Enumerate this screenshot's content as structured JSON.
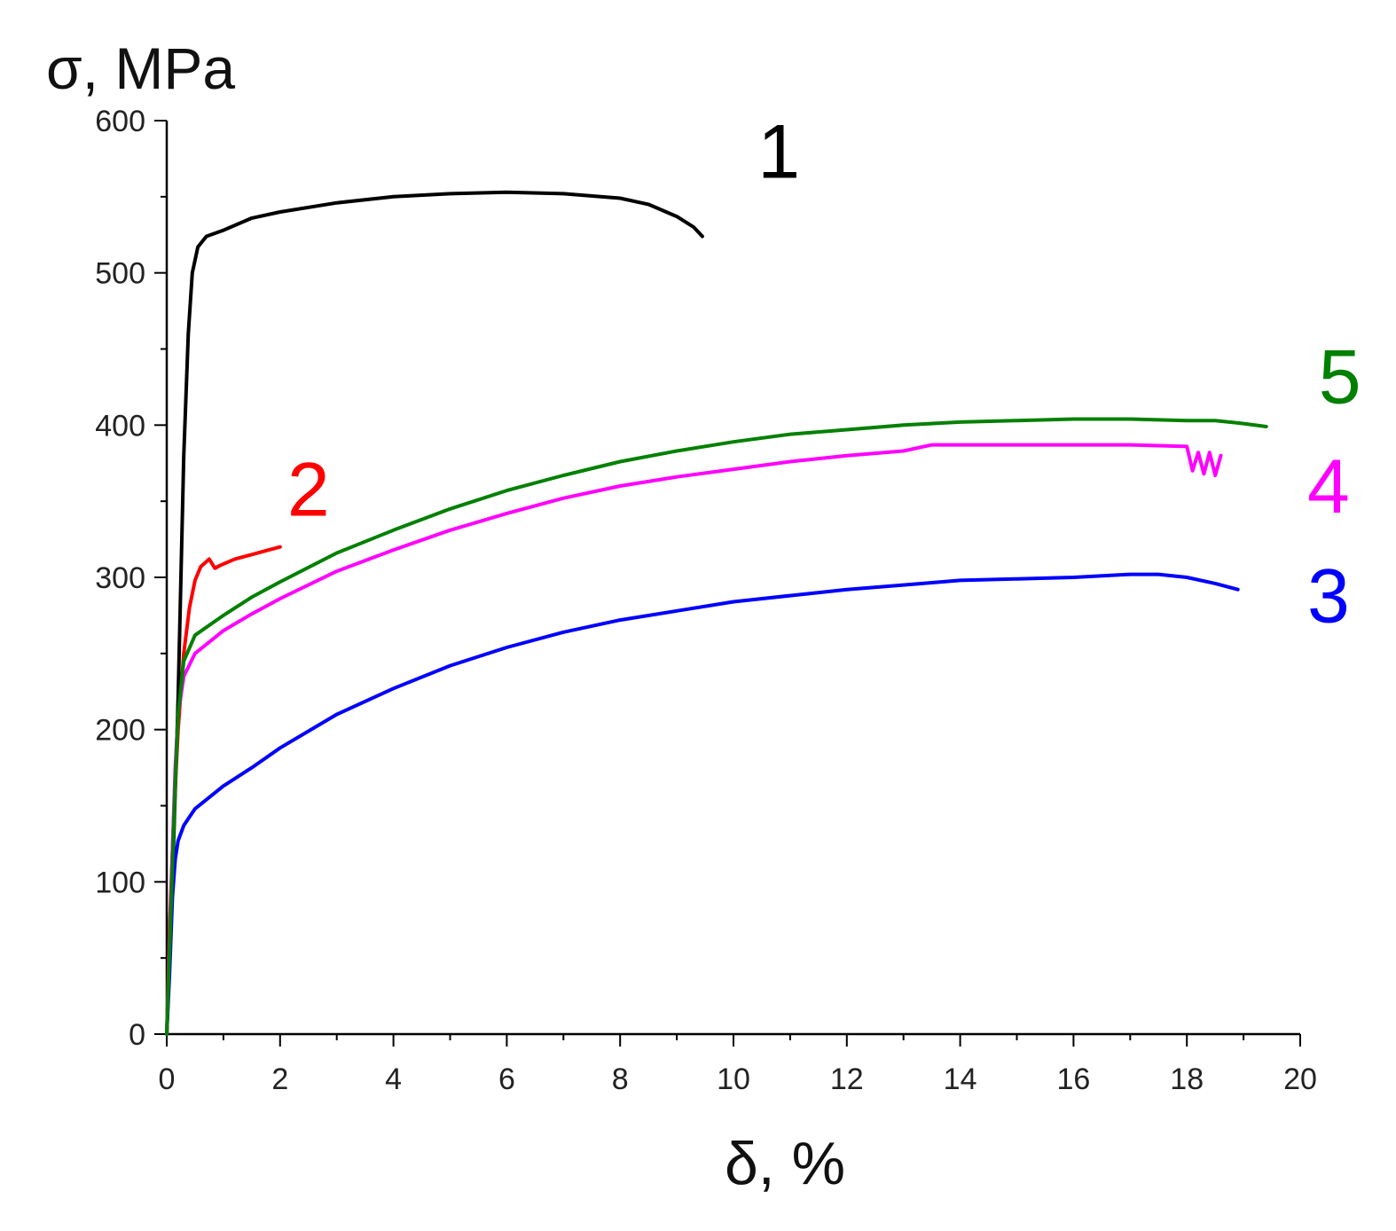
{
  "chart_data": {
    "type": "line",
    "title": "",
    "xlabel": "δ, %",
    "ylabel": "σ, MPa",
    "xlim": [
      0,
      20
    ],
    "ylim": [
      0,
      600
    ],
    "xticks": [
      0,
      2,
      4,
      6,
      8,
      10,
      12,
      14,
      16,
      18,
      20
    ],
    "yticks": [
      0,
      100,
      200,
      300,
      400,
      500,
      600
    ],
    "grid": false,
    "legend": "none",
    "series": [
      {
        "name": "1",
        "color": "#000000",
        "label_at": [
          10.8,
          580
        ],
        "points": [
          [
            0,
            0
          ],
          [
            0.1,
            100
          ],
          [
            0.2,
            220
          ],
          [
            0.3,
            380
          ],
          [
            0.38,
            460
          ],
          [
            0.45,
            500
          ],
          [
            0.55,
            517
          ],
          [
            0.7,
            524
          ],
          [
            1,
            528
          ],
          [
            1.5,
            536
          ],
          [
            2,
            540
          ],
          [
            3,
            546
          ],
          [
            4,
            550
          ],
          [
            5,
            552
          ],
          [
            6,
            553
          ],
          [
            7,
            552
          ],
          [
            8,
            549
          ],
          [
            8.5,
            545
          ],
          [
            9,
            537
          ],
          [
            9.3,
            530
          ],
          [
            9.45,
            524
          ]
        ]
      },
      {
        "name": "2",
        "color": "#ff0000",
        "label_at": [
          2.5,
          358
        ],
        "points": [
          [
            0,
            0
          ],
          [
            0.05,
            70
          ],
          [
            0.12,
            140
          ],
          [
            0.2,
            200
          ],
          [
            0.3,
            250
          ],
          [
            0.4,
            280
          ],
          [
            0.5,
            298
          ],
          [
            0.6,
            307
          ],
          [
            0.75,
            312
          ],
          [
            0.85,
            306
          ],
          [
            0.95,
            308
          ],
          [
            1.2,
            312
          ],
          [
            1.5,
            315
          ],
          [
            1.8,
            318
          ],
          [
            2,
            320
          ]
        ]
      },
      {
        "name": "3",
        "color": "#0000ff",
        "label_at": [
          20.5,
          288
        ],
        "points": [
          [
            0,
            0
          ],
          [
            0.05,
            40
          ],
          [
            0.1,
            90
          ],
          [
            0.15,
            115
          ],
          [
            0.2,
            127
          ],
          [
            0.3,
            137
          ],
          [
            0.5,
            148
          ],
          [
            1,
            163
          ],
          [
            1.5,
            175
          ],
          [
            2,
            188
          ],
          [
            3,
            210
          ],
          [
            4,
            227
          ],
          [
            5,
            242
          ],
          [
            6,
            254
          ],
          [
            7,
            264
          ],
          [
            8,
            272
          ],
          [
            9,
            278
          ],
          [
            10,
            284
          ],
          [
            11,
            288
          ],
          [
            12,
            292
          ],
          [
            13,
            295
          ],
          [
            14,
            298
          ],
          [
            15,
            299
          ],
          [
            16,
            300
          ],
          [
            17,
            302
          ],
          [
            17.5,
            302
          ],
          [
            18,
            300
          ],
          [
            18.5,
            296
          ],
          [
            18.9,
            292
          ]
        ]
      },
      {
        "name": "4",
        "color": "#ff00ff",
        "label_at": [
          20.5,
          360
        ],
        "points": [
          [
            0,
            0
          ],
          [
            0.05,
            60
          ],
          [
            0.1,
            120
          ],
          [
            0.15,
            175
          ],
          [
            0.2,
            210
          ],
          [
            0.3,
            235
          ],
          [
            0.5,
            250
          ],
          [
            1,
            265
          ],
          [
            1.5,
            276
          ],
          [
            2,
            286
          ],
          [
            3,
            304
          ],
          [
            4,
            318
          ],
          [
            5,
            331
          ],
          [
            6,
            342
          ],
          [
            7,
            352
          ],
          [
            8,
            360
          ],
          [
            9,
            366
          ],
          [
            10,
            371
          ],
          [
            11,
            376
          ],
          [
            12,
            380
          ],
          [
            13,
            383
          ],
          [
            13.5,
            387
          ],
          [
            14,
            387
          ],
          [
            15,
            387
          ],
          [
            16,
            387
          ],
          [
            17,
            387
          ],
          [
            18,
            386
          ],
          [
            18.1,
            370
          ],
          [
            18.2,
            382
          ],
          [
            18.3,
            368
          ],
          [
            18.4,
            382
          ],
          [
            18.5,
            367
          ],
          [
            18.6,
            380
          ]
        ]
      },
      {
        "name": "5",
        "color": "#008000",
        "label_at": [
          20.7,
          432
        ],
        "points": [
          [
            0,
            0
          ],
          [
            0.05,
            55
          ],
          [
            0.1,
            110
          ],
          [
            0.15,
            165
          ],
          [
            0.2,
            210
          ],
          [
            0.3,
            245
          ],
          [
            0.5,
            262
          ],
          [
            1,
            275
          ],
          [
            1.5,
            287
          ],
          [
            2,
            297
          ],
          [
            3,
            316
          ],
          [
            4,
            331
          ],
          [
            5,
            345
          ],
          [
            6,
            357
          ],
          [
            7,
            367
          ],
          [
            8,
            376
          ],
          [
            9,
            383
          ],
          [
            10,
            389
          ],
          [
            11,
            394
          ],
          [
            12,
            397
          ],
          [
            13,
            400
          ],
          [
            14,
            402
          ],
          [
            15,
            403
          ],
          [
            16,
            404
          ],
          [
            17,
            404
          ],
          [
            18,
            403
          ],
          [
            18.5,
            403
          ],
          [
            19,
            401
          ],
          [
            19.4,
            399
          ]
        ]
      }
    ]
  }
}
